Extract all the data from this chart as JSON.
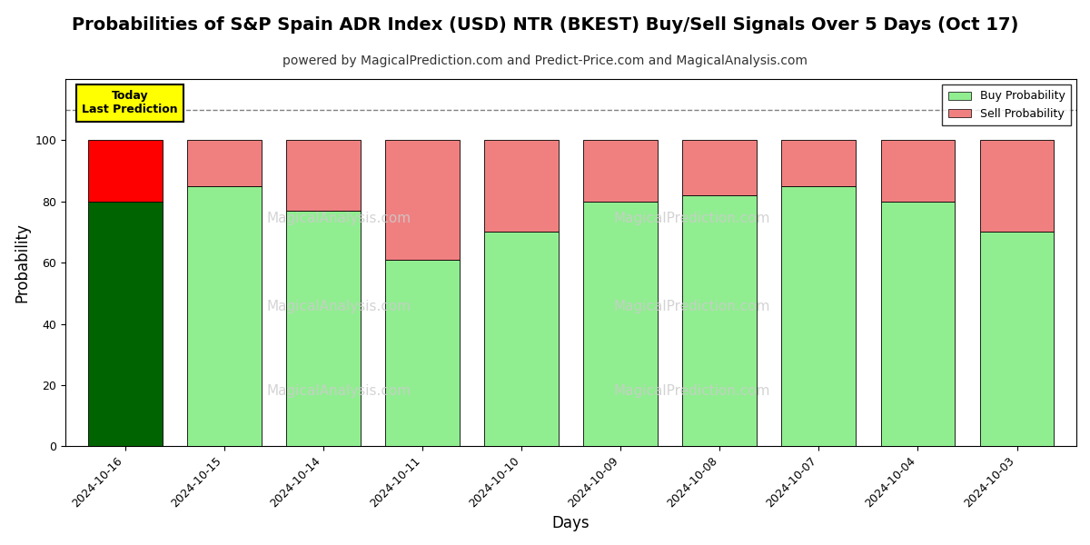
{
  "title": "Probabilities of S&P Spain ADR Index (USD) NTR (BKEST) Buy/Sell Signals Over 5 Days (Oct 17)",
  "subtitle": "powered by MagicalPrediction.com and Predict-Price.com and MagicalAnalysis.com",
  "xlabel": "Days",
  "ylabel": "Probability",
  "categories": [
    "2024-10-16",
    "2024-10-15",
    "2024-10-14",
    "2024-10-11",
    "2024-10-10",
    "2024-10-09",
    "2024-10-08",
    "2024-10-07",
    "2024-10-04",
    "2024-10-03"
  ],
  "buy_values": [
    80,
    85,
    77,
    61,
    70,
    80,
    82,
    85,
    80,
    70
  ],
  "sell_values": [
    20,
    15,
    23,
    39,
    30,
    20,
    18,
    15,
    20,
    30
  ],
  "buy_colors": [
    "#006400",
    "#90EE90",
    "#90EE90",
    "#90EE90",
    "#90EE90",
    "#90EE90",
    "#90EE90",
    "#90EE90",
    "#90EE90",
    "#90EE90"
  ],
  "sell_colors": [
    "#FF0000",
    "#F08080",
    "#F08080",
    "#F08080",
    "#F08080",
    "#F08080",
    "#F08080",
    "#F08080",
    "#F08080",
    "#F08080"
  ],
  "today_label_text": "Today\nLast Prediction",
  "legend_buy_label": "Buy Probability",
  "legend_sell_label": "Sell Probability",
  "legend_buy_color": "#90EE90",
  "legend_sell_color": "#F08080",
  "ylim": [
    0,
    120
  ],
  "yticks": [
    0,
    20,
    40,
    60,
    80,
    100
  ],
  "dashed_line_y": 110,
  "background_color": "#ffffff",
  "plot_bg_color": "#ffffff",
  "watermark_color": "#cccccc",
  "title_fontsize": 14,
  "subtitle_fontsize": 10,
  "label_fontsize": 12,
  "tick_fontsize": 9,
  "bar_width": 0.75
}
